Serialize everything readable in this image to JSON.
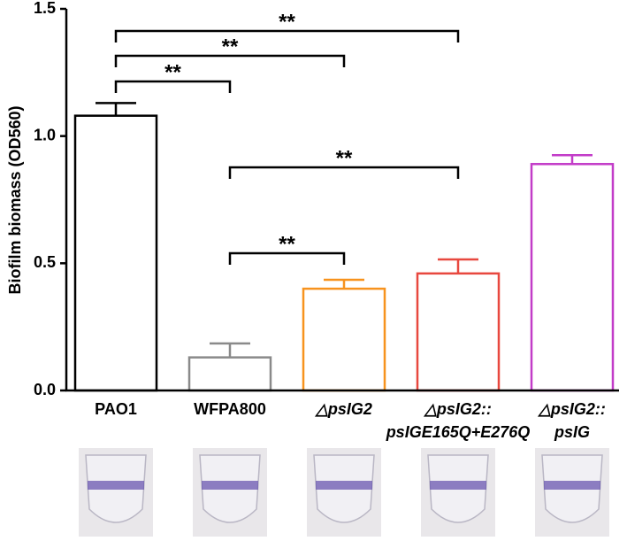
{
  "chart_data": {
    "type": "bar",
    "y_label": "Biofilm biomass (OD560)",
    "categories": [
      [
        "PAO1"
      ],
      [
        "WFPA800"
      ],
      [
        "△psIG2"
      ],
      [
        "△psIG2::",
        "psIGE165Q+E276Q"
      ],
      [
        "△psIG2::",
        "psIG"
      ]
    ],
    "values": [
      1.08,
      0.13,
      0.4,
      0.46,
      0.89
    ],
    "errors": [
      0.05,
      0.055,
      0.035,
      0.055,
      0.035
    ],
    "colors": [
      "#000000",
      "#8a8a8a",
      "#f7931e",
      "#e8483f",
      "#c23cc8"
    ],
    "ylim": [
      0,
      1.5
    ],
    "yticks": [
      {
        "value": 0,
        "label": "0.0"
      },
      0.5,
      {
        "value": 1,
        "label": "1.0"
      },
      1.5
    ],
    "comparisons": [
      {
        "label": "**"
      },
      {
        "label": "**"
      },
      {
        "label": "**"
      },
      {
        "label": "**"
      },
      {
        "label": "**"
      }
    ]
  }
}
